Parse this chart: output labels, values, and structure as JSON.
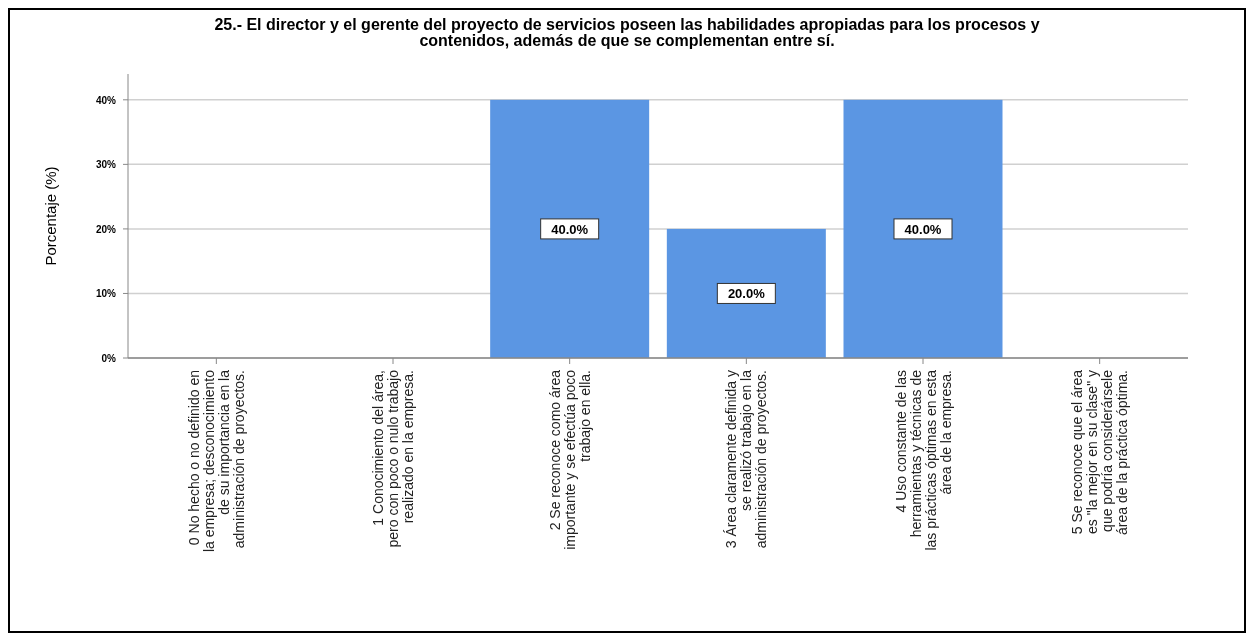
{
  "chart_data": {
    "type": "bar",
    "title": "25.- El director y el gerente del proyecto de servicios poseen las habilidades apropiadas para los procesos y\ncontenidos, además de que se complementan entre sí.",
    "ylabel": "Porcentaje (%)",
    "categories": [
      "0  No hecho o no definido en\nla empresa; desconocimiento\nde su importancia en la\nadministración de proyectos.",
      "1  Conocimiento del área,\npero con poco o nulo trabajo\nrealizado en la empresa.",
      "2  Se reconoce como área\nimportante y se efectúa poco\ntrabajo en ella.",
      "3  Área claramente definida y\nse realizó trabajo en la\nadministración de proyectos.",
      "4  Uso constante de las\nherramientas y técnicas de\nlas prácticas óptimas en esta\nárea de la empresa.",
      "5  Se reconoce que el área\nes \"la mejor en su clase\" y\nque podría considerársele\nárea de la práctica óptima."
    ],
    "values": [
      0,
      0,
      40,
      20,
      40,
      0
    ],
    "value_labels": [
      null,
      null,
      "40.0%",
      "20.0%",
      "40.0%",
      null
    ],
    "color": "#5b96e3",
    "ylim": [
      0,
      44
    ],
    "yticks": [
      {
        "value": 0,
        "label": "0%"
      },
      {
        "value": 10,
        "label": "10%"
      },
      {
        "value": 20,
        "label": "20%"
      },
      {
        "value": 30,
        "label": "30%"
      },
      {
        "value": 40,
        "label": "40%"
      }
    ],
    "grid": "y"
  }
}
